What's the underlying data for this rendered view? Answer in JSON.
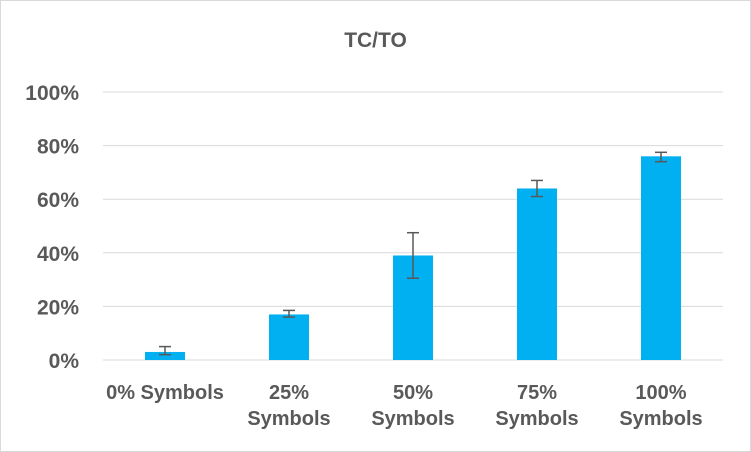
{
  "chart_data": {
    "type": "bar",
    "title": "TC/TO",
    "categories": [
      [
        "0% Symbols"
      ],
      [
        "25%",
        "Symbols"
      ],
      [
        "50%",
        "Symbols"
      ],
      [
        "75%",
        "Symbols"
      ],
      [
        "100%",
        "Symbols"
      ]
    ],
    "values": [
      3,
      17,
      39,
      64,
      76
    ],
    "error_low": [
      2,
      16,
      30.5,
      61,
      74
    ],
    "error_high": [
      5,
      18.5,
      47.5,
      67,
      77.5
    ],
    "ylim": [
      0,
      100
    ],
    "yticks": [
      "0%",
      "20%",
      "40%",
      "60%",
      "80%",
      "100%"
    ],
    "ytick_values": [
      0,
      20,
      40,
      60,
      80,
      100
    ],
    "grid": true,
    "legend": "none",
    "bar_color": "#00b0f0",
    "error_bar_color": "#595959",
    "grid_color": "#d9d9d9"
  }
}
